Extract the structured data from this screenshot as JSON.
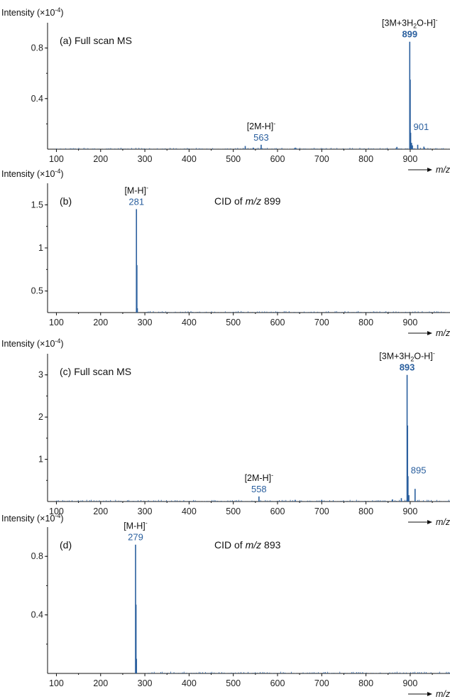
{
  "colors": {
    "spectrum": "#2a5f9e",
    "peak_label": "#2a5f9e",
    "axis": "#111111"
  },
  "chart_data": [
    {
      "type": "bar",
      "panel": "(a)",
      "title": "(a) Full scan MS",
      "ylabel": "Intensity (×10",
      "ylabel_exp": "-4",
      "xlabel": "m/z",
      "xlim": [
        80,
        990
      ],
      "ylim": [
        0,
        1.0
      ],
      "xticks": [
        100,
        200,
        300,
        400,
        500,
        600,
        700,
        800,
        900
      ],
      "yticks": [
        0.4,
        0.8
      ],
      "peaks": [
        {
          "mz": 899,
          "intensity": 0.85
        },
        {
          "mz": 900,
          "intensity": 0.55
        },
        {
          "mz": 901,
          "intensity": 0.13
        },
        {
          "mz": 903,
          "intensity": 0.05
        },
        {
          "mz": 905,
          "intensity": 0.03
        },
        {
          "mz": 917,
          "intensity": 0.035
        },
        {
          "mz": 931,
          "intensity": 0.02
        },
        {
          "mz": 563,
          "intensity": 0.035
        },
        {
          "mz": 527,
          "intensity": 0.025
        },
        {
          "mz": 545,
          "intensity": 0.012
        },
        {
          "mz": 640,
          "intensity": 0.012
        },
        {
          "mz": 870,
          "intensity": 0.018
        }
      ],
      "labels": [
        {
          "mz": 899,
          "text": "899",
          "bold": true,
          "ion": "[3M+3H",
          "ion_sub": "2",
          "ion_tail": "O-H]",
          "ion_sup": "-"
        },
        {
          "mz": 563,
          "text": "563",
          "bold": false,
          "ion": "[2M-H]",
          "ion_sub": "",
          "ion_tail": "",
          "ion_sup": "-"
        },
        {
          "mz": 901,
          "text": "901",
          "bold": false,
          "ion": "",
          "ion_sub": "",
          "ion_tail": "",
          "ion_sup": ""
        }
      ]
    },
    {
      "type": "bar",
      "panel": "(b)",
      "title": "(b)",
      "annotation": "CID of m/z 899",
      "ylabel": "Intensity (×10",
      "ylabel_exp": "-4",
      "xlabel": "m/z",
      "xlim": [
        80,
        990
      ],
      "ylim": [
        0.25,
        1.75
      ],
      "xticks": [
        100,
        200,
        300,
        400,
        500,
        600,
        700,
        800,
        900
      ],
      "yticks": [
        0.5,
        1.0,
        1.5
      ],
      "peaks": [
        {
          "mz": 281,
          "intensity": 1.45
        },
        {
          "mz": 282,
          "intensity": 0.8
        },
        {
          "mz": 283,
          "intensity": 0.3
        }
      ],
      "labels": [
        {
          "mz": 281,
          "text": "281",
          "bold": false,
          "ion": "[M-H]",
          "ion_sub": "",
          "ion_tail": "",
          "ion_sup": "-"
        }
      ]
    },
    {
      "type": "bar",
      "panel": "(c)",
      "title": "(c) Full scan MS",
      "ylabel": "Intensity (×10",
      "ylabel_exp": "-4",
      "xlabel": "m/z",
      "xlim": [
        80,
        990
      ],
      "ylim": [
        0,
        3.5
      ],
      "xticks": [
        100,
        200,
        300,
        400,
        500,
        600,
        700,
        800,
        900
      ],
      "yticks": [
        1,
        2,
        3
      ],
      "peaks": [
        {
          "mz": 893,
          "intensity": 3.0
        },
        {
          "mz": 894,
          "intensity": 1.8
        },
        {
          "mz": 895,
          "intensity": 0.6
        },
        {
          "mz": 897,
          "intensity": 0.15
        },
        {
          "mz": 911,
          "intensity": 0.3
        },
        {
          "mz": 558,
          "intensity": 0.12
        },
        {
          "mz": 880,
          "intensity": 0.08
        },
        {
          "mz": 860,
          "intensity": 0.05
        },
        {
          "mz": 700,
          "intensity": 0.04
        },
        {
          "mz": 640,
          "intensity": 0.04
        }
      ],
      "labels": [
        {
          "mz": 893,
          "text": "893",
          "bold": true,
          "ion": "[3M+3H",
          "ion_sub": "2",
          "ion_tail": "O-H]",
          "ion_sup": "-"
        },
        {
          "mz": 558,
          "text": "558",
          "bold": false,
          "ion": "[2M-H]",
          "ion_sub": "",
          "ion_tail": "",
          "ion_sup": "-"
        },
        {
          "mz": 895,
          "text": "895",
          "bold": false,
          "ion": "",
          "ion_sub": "",
          "ion_tail": "",
          "ion_sup": ""
        }
      ]
    },
    {
      "type": "bar",
      "panel": "(d)",
      "title": "(d)",
      "annotation": "CID of m/z 893",
      "ylabel": "Intensity (×10",
      "ylabel_exp": "-4",
      "xlabel": "m/z",
      "xlim": [
        80,
        990
      ],
      "ylim": [
        0,
        1.0
      ],
      "xticks": [
        100,
        200,
        300,
        400,
        500,
        600,
        700,
        800,
        900
      ],
      "yticks": [
        0.4,
        0.8
      ],
      "peaks": [
        {
          "mz": 279,
          "intensity": 0.88
        },
        {
          "mz": 280,
          "intensity": 0.47
        },
        {
          "mz": 281,
          "intensity": 0.1
        }
      ],
      "labels": [
        {
          "mz": 279,
          "text": "279",
          "bold": false,
          "ion": "[M-H]",
          "ion_sub": "",
          "ion_tail": "",
          "ion_sup": "-"
        }
      ]
    }
  ]
}
